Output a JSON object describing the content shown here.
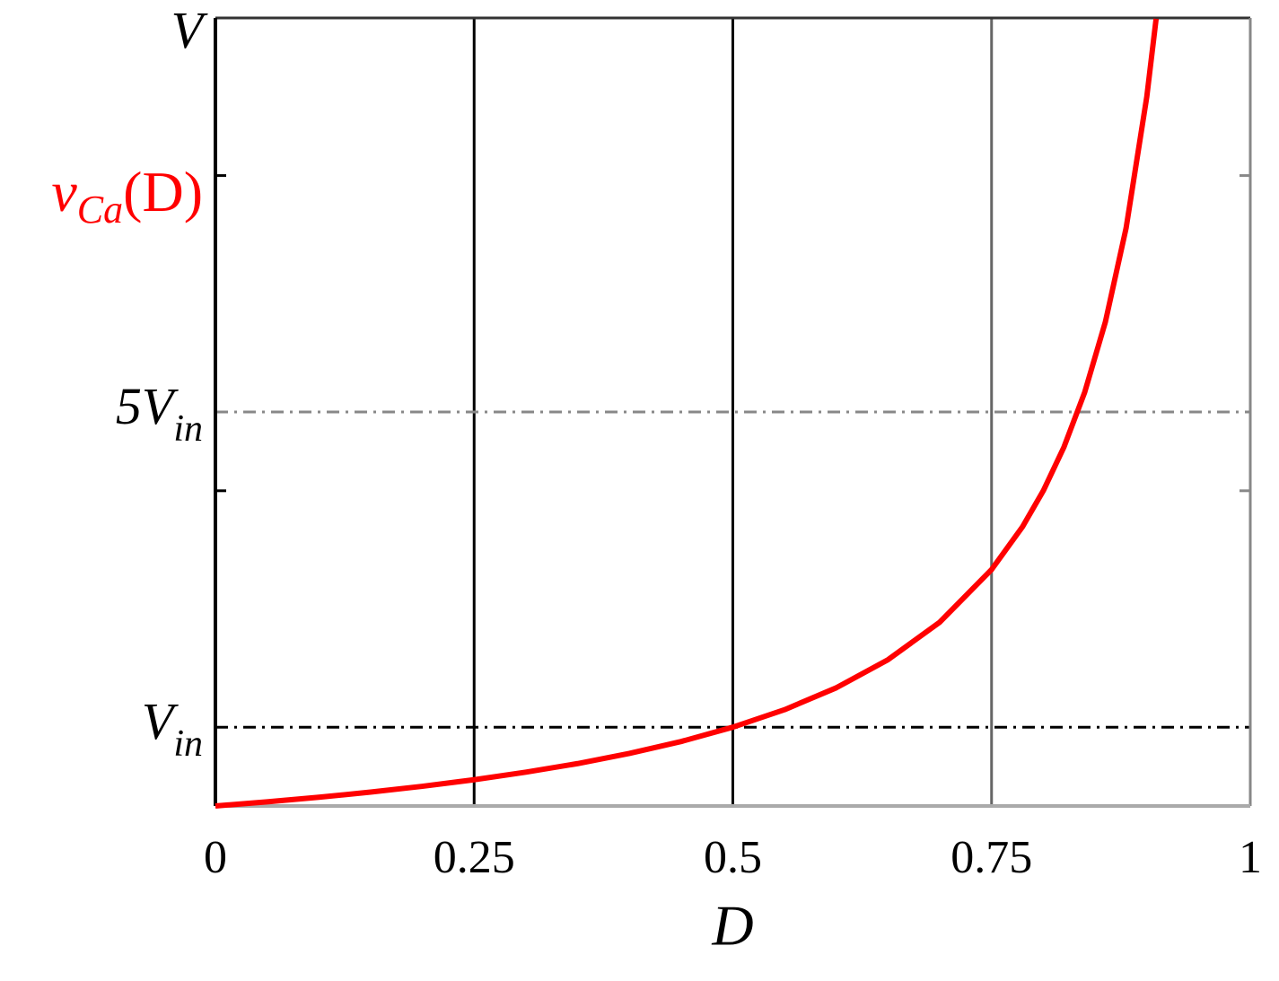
{
  "chart_data": {
    "type": "line",
    "xlabel": "D",
    "ylabel": {
      "text": "v",
      "subscript": "Ca",
      "suffix": "(D)",
      "color": "#ff0000"
    },
    "xlim": [
      0,
      1
    ],
    "ylim": [
      0,
      10
    ],
    "xticks": [
      0,
      0.25,
      0.5,
      0.75,
      1
    ],
    "yticks": [
      {
        "value": 10,
        "label": "V"
      },
      {
        "value": 5,
        "label": "5V",
        "subscript": "in"
      },
      {
        "value": 1,
        "label": "V",
        "subscript": "in"
      }
    ],
    "minor_yticks": [
      4,
      8
    ],
    "vlines": [
      {
        "value": 0.25,
        "color": "#000000"
      },
      {
        "value": 0.5,
        "color": "#000000"
      },
      {
        "value": 0.75,
        "color": "#666666"
      }
    ],
    "hlines": [
      {
        "value": 1,
        "color": "#000000"
      },
      {
        "value": 5,
        "color": "#888888"
      }
    ],
    "x": [
      0,
      0.05,
      0.1,
      0.15,
      0.2,
      0.25,
      0.3,
      0.35,
      0.4,
      0.45,
      0.5,
      0.55,
      0.6,
      0.65,
      0.7,
      0.75,
      0.78,
      0.8,
      0.82,
      0.84,
      0.86,
      0.88,
      0.9,
      0.909
    ],
    "series": [
      {
        "name": "vCa(D)",
        "color": "#ff0000",
        "values": [
          0,
          0.053,
          0.111,
          0.176,
          0.25,
          0.333,
          0.429,
          0.538,
          0.667,
          0.818,
          1,
          1.222,
          1.5,
          1.857,
          2.333,
          3,
          3.545,
          4,
          4.556,
          5.25,
          6.143,
          7.333,
          9,
          9.989
        ]
      }
    ]
  }
}
